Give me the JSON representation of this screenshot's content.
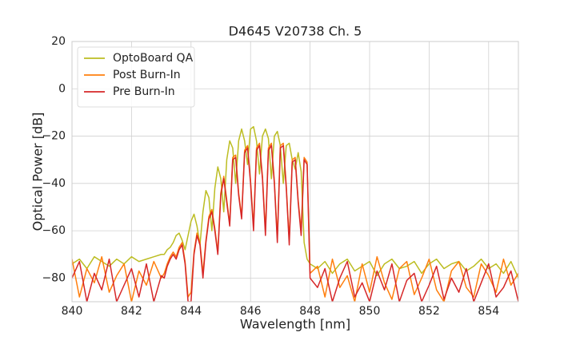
{
  "chart_data": {
    "type": "line",
    "title": "D4645 V20738 Ch. 5",
    "x_label": "Wavelength [nm]",
    "y_label": "Optical Power [dB]",
    "xlim": [
      840,
      855
    ],
    "ylim": [
      -90,
      20
    ],
    "xticks": [
      840,
      842,
      844,
      846,
      848,
      850,
      852,
      854
    ],
    "yticks": [
      {
        "value": -80,
        "label": "−80"
      },
      {
        "value": -60,
        "label": "−60"
      },
      {
        "value": -40,
        "label": "−40"
      },
      {
        "value": -20,
        "label": "−20"
      },
      0,
      20
    ],
    "grid": true,
    "legend": "upper left",
    "x": [
      840,
      840.25,
      840.5,
      840.75,
      841,
      841.25,
      841.5,
      841.75,
      842,
      842.25,
      842.5,
      842.75,
      843,
      843.1,
      843.2,
      843.3,
      843.4,
      843.5,
      843.6,
      843.7,
      843.8,
      843.9,
      844,
      844.1,
      844.2,
      844.3,
      844.4,
      844.5,
      844.6,
      844.7,
      844.8,
      844.9,
      845,
      845.1,
      845.2,
      845.3,
      845.4,
      845.5,
      845.6,
      845.7,
      845.8,
      845.9,
      846,
      846.1,
      846.2,
      846.3,
      846.4,
      846.5,
      846.6,
      846.7,
      846.8,
      846.9,
      847,
      847.1,
      847.2,
      847.3,
      847.4,
      847.5,
      847.6,
      847.7,
      847.8,
      847.9,
      848,
      848.25,
      848.5,
      848.75,
      849,
      849.25,
      849.5,
      849.75,
      850,
      850.25,
      850.5,
      850.75,
      851,
      851.25,
      851.5,
      851.75,
      852,
      852.25,
      852.5,
      852.75,
      853,
      853.25,
      853.5,
      853.75,
      854,
      854.25,
      854.5,
      854.75,
      855
    ],
    "series": [
      {
        "name": "OptoBoard QA",
        "color": "#bcbd22",
        "values": [
          -74,
          -72,
          -76,
          -71,
          -73,
          -75,
          -72,
          -74,
          -71,
          -73,
          -72,
          -71,
          -70,
          -70,
          -68,
          -67,
          -65,
          -62,
          -61,
          -64,
          -68,
          -62,
          -56,
          -53,
          -58,
          -66,
          -52,
          -43,
          -46,
          -60,
          -42,
          -33,
          -38,
          -52,
          -30,
          -22,
          -25,
          -40,
          -22,
          -17,
          -22,
          -32,
          -17,
          -16,
          -22,
          -36,
          -20,
          -17,
          -21,
          -38,
          -20,
          -18,
          -24,
          -40,
          -24,
          -23,
          -30,
          -34,
          -27,
          -35,
          -65,
          -72,
          -74,
          -76,
          -73,
          -78,
          -74,
          -72,
          -77,
          -75,
          -73,
          -79,
          -74,
          -72,
          -76,
          -75,
          -73,
          -78,
          -74,
          -72,
          -76,
          -74,
          -73,
          -77,
          -75,
          -72,
          -76,
          -74,
          -78,
          -73,
          -80
        ]
      },
      {
        "name": "Post Burn-In",
        "color": "#ff7f0e",
        "values": [
          -72,
          -88,
          -76,
          -82,
          -71,
          -86,
          -79,
          -74,
          -90,
          -77,
          -83,
          -73,
          -80,
          -78,
          -74,
          -71,
          -69,
          -71,
          -67,
          -65,
          -73,
          -88,
          -86,
          -69,
          -61,
          -65,
          -78,
          -64,
          -54,
          -51,
          -59,
          -69,
          -44,
          -37,
          -47,
          -57,
          -29,
          -28,
          -44,
          -54,
          -26,
          -24,
          -39,
          -58,
          -25,
          -23,
          -37,
          -60,
          -25,
          -23,
          -39,
          -63,
          -24,
          -23,
          -41,
          -64,
          -30,
          -29,
          -47,
          -60,
          -29,
          -31,
          -78,
          -75,
          -88,
          -72,
          -84,
          -79,
          -90,
          -74,
          -86,
          -71,
          -82,
          -89,
          -76,
          -73,
          -87,
          -80,
          -72,
          -85,
          -90,
          -77,
          -73,
          -84,
          -88,
          -74,
          -79,
          -86,
          -72,
          -83,
          -78
        ]
      },
      {
        "name": "Pre Burn-In",
        "color": "#d62728",
        "values": [
          -80,
          -73,
          -90,
          -78,
          -85,
          -72,
          -90,
          -83,
          -76,
          -88,
          -74,
          -90,
          -79,
          -80,
          -75,
          -72,
          -70,
          -72,
          -68,
          -66,
          -74,
          -90,
          -90,
          -70,
          -62,
          -66,
          -80,
          -65,
          -55,
          -52,
          -60,
          -70,
          -45,
          -38,
          -48,
          -58,
          -30,
          -29,
          -45,
          -55,
          -27,
          -25,
          -40,
          -60,
          -26,
          -24,
          -38,
          -62,
          -26,
          -24,
          -40,
          -65,
          -25,
          -24,
          -42,
          -66,
          -31,
          -30,
          -48,
          -62,
          -30,
          -32,
          -80,
          -84,
          -76,
          -90,
          -80,
          -73,
          -88,
          -82,
          -90,
          -77,
          -85,
          -74,
          -90,
          -81,
          -78,
          -90,
          -83,
          -75,
          -89,
          -80,
          -86,
          -76,
          -90,
          -82,
          -74,
          -88,
          -84,
          -77,
          -90
        ]
      }
    ]
  }
}
